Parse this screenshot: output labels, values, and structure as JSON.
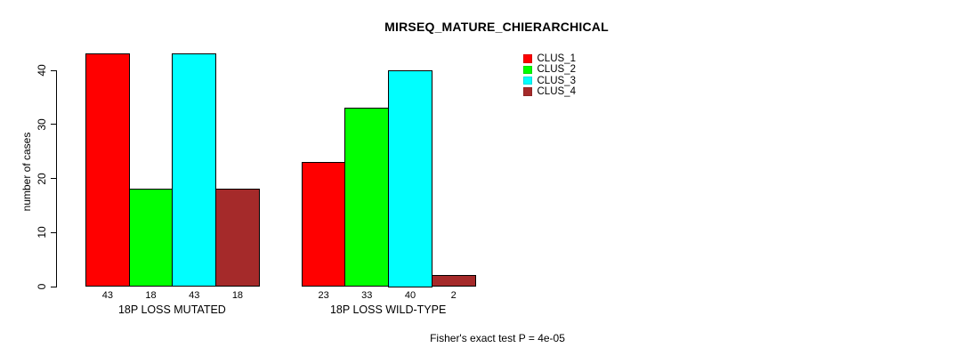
{
  "title": "MIRSEQ_MATURE_CHIERARCHICAL",
  "footer": "Fisher's exact test P = 4e-05",
  "chart_data": {
    "type": "bar",
    "title": "MIRSEQ_MATURE_CHIERARCHICAL",
    "ylabel": "number of cases",
    "xlabel": "",
    "ylim": [
      0,
      40
    ],
    "yticks": [
      0,
      10,
      20,
      30,
      40
    ],
    "grid": false,
    "legend_position": "top-right",
    "categories": [
      "18P LOSS MUTATED",
      "18P LOSS WILD-TYPE"
    ],
    "series": [
      {
        "name": "CLUS_1",
        "color": "#ff0000",
        "values": [
          43,
          23
        ]
      },
      {
        "name": "CLUS_2",
        "color": "#00ff00",
        "values": [
          18,
          33
        ]
      },
      {
        "name": "CLUS_3",
        "color": "#00ffff",
        "values": [
          43,
          40
        ]
      },
      {
        "name": "CLUS_4",
        "color": "#a52a2a",
        "values": [
          18,
          2
        ]
      }
    ],
    "bar_value_labels": [
      [
        "43",
        "18",
        "43",
        "18"
      ],
      [
        "23",
        "33",
        "40",
        "2"
      ]
    ],
    "annotation": "Fisher's exact test P = 4e-05",
    "background_color": "#ffffff",
    "text_color": "#000000"
  }
}
